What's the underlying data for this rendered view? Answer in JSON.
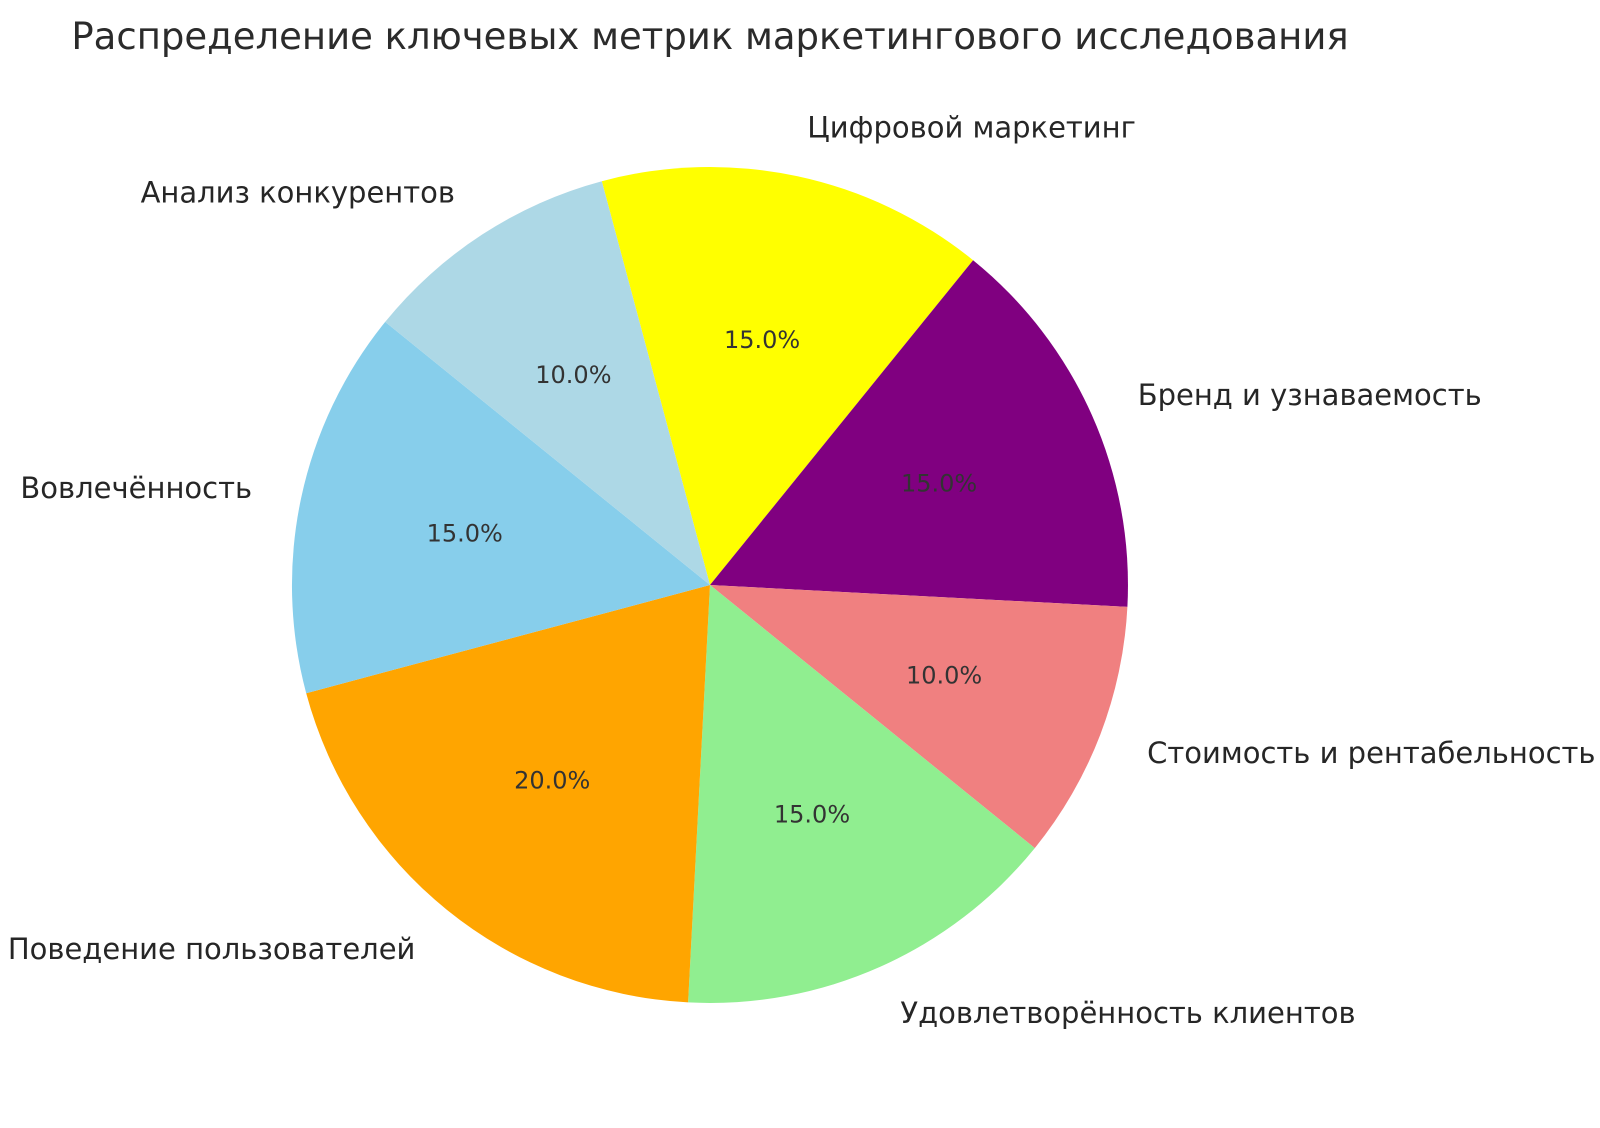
{
  "title": "Распределение ключевых метрик маркетингового исследования",
  "chart_data": {
    "type": "pie",
    "title": "Распределение ключевых метрик маркетингового исследования",
    "legend": "none",
    "background": "#FFFFFF",
    "text_color": "#2b2b2b",
    "start_angle_deg": 105,
    "direction": "clockwise",
    "slices": [
      {
        "label": "Цифровой маркетинг",
        "value": 15.0,
        "pct_label": "15.0%",
        "color": "#FFFF00"
      },
      {
        "label": "Бренд и узнаваемость",
        "value": 15.0,
        "pct_label": "15.0%",
        "color": "#800080"
      },
      {
        "label": "Стоимость и рентабельность",
        "value": 10.0,
        "pct_label": "10.0%",
        "color": "#F08080"
      },
      {
        "label": "Удовлетворённость клиентов",
        "value": 15.0,
        "pct_label": "15.0%",
        "color": "#90EE90"
      },
      {
        "label": "Поведение пользователей",
        "value": 20.0,
        "pct_label": "20.0%",
        "color": "#FFA500"
      },
      {
        "label": "Вовлечённость",
        "value": 15.0,
        "pct_label": "15.0%",
        "color": "#87CEEB"
      },
      {
        "label": "Анализ конкурентов",
        "value": 10.0,
        "pct_label": "10.0%",
        "color": "#ADD8E6"
      }
    ]
  }
}
